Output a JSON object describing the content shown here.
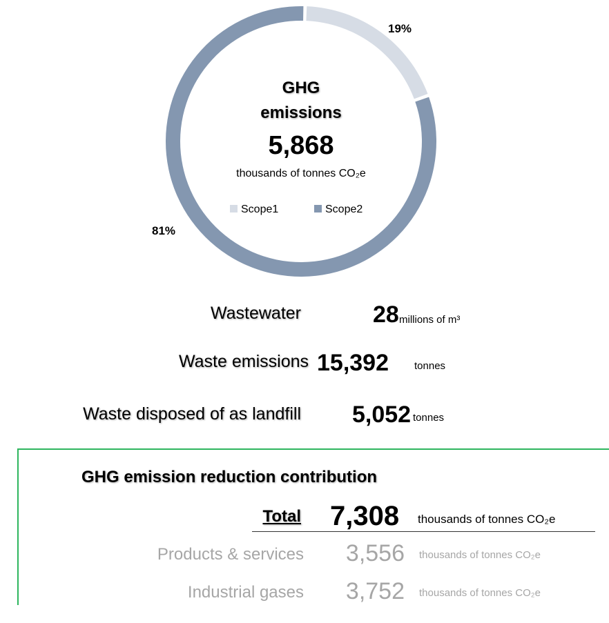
{
  "chart_data": {
    "type": "pie",
    "donut": true,
    "title": "GHG emissions",
    "total": "5,868",
    "unit": "thousands of tonnes CO₂e",
    "categories": [
      "Scope1",
      "Scope2"
    ],
    "values": [
      19,
      81
    ],
    "value_labels": [
      "19%",
      "81%"
    ],
    "colors": [
      "#d6dce5",
      "#8497b0"
    ],
    "legend": "center"
  },
  "metrics": [
    {
      "label": "Wastewater",
      "value": "28",
      "unit": "millions of m³"
    },
    {
      "label": "Waste emissions",
      "value": "15,392",
      "unit": "tonnes"
    },
    {
      "label": "Waste disposed of as landfill",
      "value": "5,052",
      "unit": "tonnes"
    }
  ],
  "reduction": {
    "title": "GHG emission reduction contribution",
    "rows": [
      {
        "label": "Total",
        "value": "7,308",
        "unit": "thousands of tonnes CO₂e"
      },
      {
        "label": "Products & services",
        "value": "3,556",
        "unit": "thousands of tonnes CO₂e"
      },
      {
        "label": "Industrial gases",
        "value": "3,752",
        "unit": "thousands of tonnes CO₂e"
      }
    ]
  }
}
